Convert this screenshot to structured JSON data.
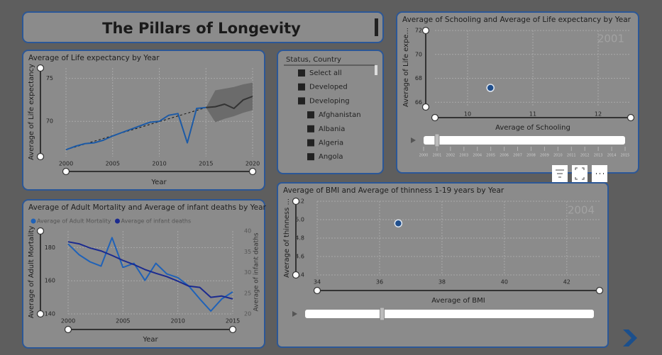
{
  "page": {
    "title": "The Pillars of Longevity"
  },
  "slicer": {
    "title": "Status, Country",
    "items": [
      "Select all",
      "Developed",
      "Developing",
      "Afghanistan",
      "Albania",
      "Algeria",
      "Angola"
    ]
  },
  "chart_data": [
    {
      "type": "line",
      "title": "Average of Life expectancy by Year",
      "x_label": "Year",
      "y_label": "Average of Life expectancy",
      "x": [
        2000,
        2001,
        2002,
        2003,
        2004,
        2005,
        2006,
        2007,
        2008,
        2009,
        2010,
        2011,
        2012,
        2013,
        2014,
        2015,
        2016,
        2017,
        2018,
        2019,
        2020
      ],
      "xlim": [
        2000,
        2020
      ],
      "xticks": [
        2000,
        2005,
        2010,
        2015,
        2020
      ],
      "ylim": [
        65.9,
        76.2
      ],
      "yticks": [
        70,
        75
      ],
      "grid": true,
      "series": [
        {
          "color": "#1c5aa6",
          "values": [
            66.7,
            67.1,
            67.4,
            67.5,
            67.8,
            68.3,
            68.7,
            69.1,
            69.5,
            69.9,
            70.0,
            70.7,
            70.9,
            67.5,
            71.5,
            71.6,
            null,
            null,
            null,
            null,
            null
          ]
        },
        {
          "color": "#333333",
          "values": [
            null,
            null,
            null,
            null,
            null,
            null,
            null,
            null,
            null,
            null,
            null,
            null,
            null,
            null,
            null,
            71.6,
            71.7,
            72.0,
            71.5,
            72.5,
            72.9
          ]
        }
      ],
      "trend": {
        "color": "#111111",
        "x": [
          2000,
          2015
        ],
        "values": [
          66.7,
          71.6
        ]
      },
      "forecast_band": {
        "color": "#6b6b6b",
        "x": [
          2015,
          2016,
          2017,
          2018,
          2019,
          2020
        ],
        "upper": [
          71.6,
          73.6,
          73.8,
          74.0,
          74.3,
          74.5
        ],
        "lower": [
          71.6,
          69.9,
          70.3,
          70.6,
          71.0,
          71.3
        ]
      }
    },
    {
      "type": "line",
      "title": "Average of Adult Mortality and Average of infant deaths by Year",
      "x_label": "Year",
      "y_label": "Average of Adult Mortality",
      "y2_label": "Average of infant deaths",
      "legend": "top",
      "x": [
        2000,
        2001,
        2002,
        2003,
        2004,
        2005,
        2006,
        2007,
        2008,
        2009,
        2010,
        2011,
        2012,
        2013,
        2014,
        2015
      ],
      "xlim": [
        2000,
        2015
      ],
      "xticks": [
        2000,
        2005,
        2010,
        2015
      ],
      "ylim": [
        140,
        190
      ],
      "yticks": [
        140,
        160,
        180
      ],
      "y2lim": [
        20,
        40
      ],
      "y2ticks": [
        20,
        25,
        30,
        35,
        40
      ],
      "grid": true,
      "series": [
        {
          "name": "Average of Adult Mortality",
          "color": "#1f62b8",
          "values": [
            182.2,
            175.7,
            171.4,
            168.8,
            186.0,
            168.0,
            170.5,
            160.2,
            170.5,
            164.1,
            161.9,
            156.8,
            149.0,
            141.7,
            149.0,
            153.3
          ]
        },
        {
          "name": "Average of infant deaths",
          "color": "#1b2a8f",
          "axis": "y2",
          "values": [
            37.4,
            36.9,
            35.9,
            35.2,
            34.1,
            32.9,
            31.9,
            30.7,
            29.8,
            29.0,
            27.9,
            26.7,
            26.4,
            24.0,
            24.3,
            23.6
          ]
        }
      ]
    },
    {
      "type": "scatter",
      "title": "Average of Schooling and Average of Life expectancy by Year",
      "x_label": "Average of Schooling",
      "y_label": "Average of Life expe...",
      "frame": 2001,
      "play_range": [
        2000,
        2015
      ],
      "play_ticks": [
        2000,
        2001,
        2002,
        2003,
        2004,
        2005,
        2006,
        2007,
        2008,
        2009,
        2010,
        2011,
        2012,
        2013,
        2014,
        2015
      ],
      "xlim": [
        9.5,
        12.5
      ],
      "xticks": [
        10,
        11,
        12
      ],
      "ylim": [
        65.6,
        72
      ],
      "yticks": [
        66,
        68,
        70,
        72
      ],
      "grid": true,
      "color": "#1f4e8c",
      "x": [
        10.35
      ],
      "values": [
        67.2
      ]
    },
    {
      "type": "scatter",
      "title": "Average of BMI and Average of thinness 1-19 years by Year",
      "x_label": "Average of BMI",
      "y_label": "Average of thinness ...",
      "frame": 2004,
      "play_range": [
        2000,
        2015
      ],
      "xlim": [
        34,
        43.05
      ],
      "xticks": [
        34,
        36,
        38,
        40,
        42
      ],
      "ylim": [
        4.4,
        5.2
      ],
      "yticks": [
        4.4,
        4.6,
        4.8,
        {
          "value": 5,
          "label": "5.0"
        },
        5.2
      ],
      "grid": true,
      "color": "#1f4e8c",
      "x": [
        36.6
      ],
      "values": [
        4.96
      ]
    }
  ]
}
